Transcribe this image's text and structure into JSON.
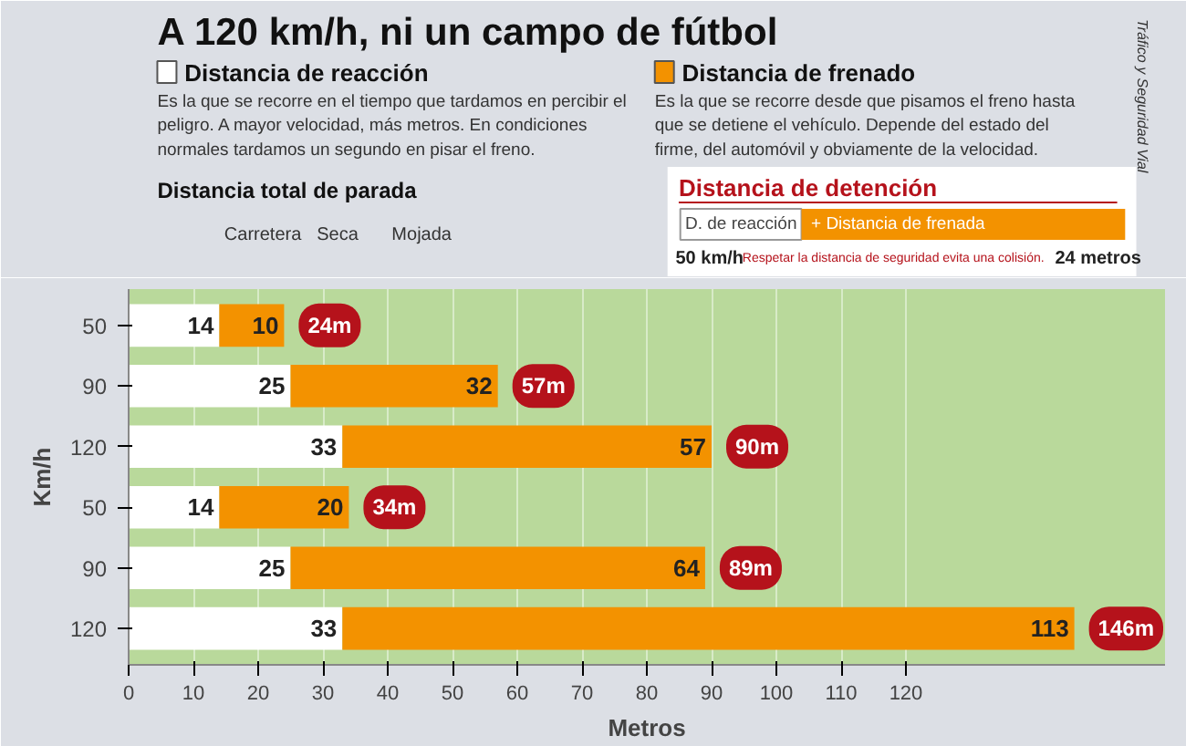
{
  "chart_data": {
    "type": "bar",
    "orientation": "horizontal",
    "stacked": true,
    "title": "A 120 km/h, ni un campo de fútbol",
    "xlabel": "Metros",
    "ylabel": "Km/h",
    "categories": [
      "50",
      "90",
      "120",
      "50",
      "90",
      "120"
    ],
    "series": [
      {
        "name": "Distancia de reacción",
        "color": "#ffffff",
        "values": [
          14,
          25,
          33,
          14,
          25,
          33
        ]
      },
      {
        "name": "Distancia de frenado",
        "color": "#f39200",
        "values": [
          10,
          32,
          57,
          20,
          64,
          113
        ]
      }
    ],
    "totals": [
      "24m",
      "57m",
      "90m",
      "34m",
      "89m",
      "146m"
    ],
    "data_labels": true,
    "xlim": [
      0,
      160
    ],
    "xticks": [
      0,
      10,
      20,
      30,
      40,
      50,
      60,
      70,
      80,
      90,
      100,
      110,
      120
    ],
    "grid": "x",
    "legend": "top",
    "annotations": [
      "Es la que se recorre en el tiempo que tardamos en percibir el\npeligro. A mayor velocidad, más metros. En condiciones\nnormales tardamos un segundo en pisar el freno.",
      "Es la que se recorre desde que pisamos el freno hasta\nque se detiene el vehículo. Depende del estado del\nfirme, del automóvil y obviamente de la velocidad.",
      "Distancia total de parada",
      "Carretera",
      "Seca",
      "Mojada",
      "Distancia de detención",
      "D. de reacción",
      "+ Distancia de frenada",
      "50 km/h",
      "Respetar la distancia de seguridad evita una colisión.",
      "24 metros",
      "Tráfico y Seguridad Vial"
    ]
  }
}
